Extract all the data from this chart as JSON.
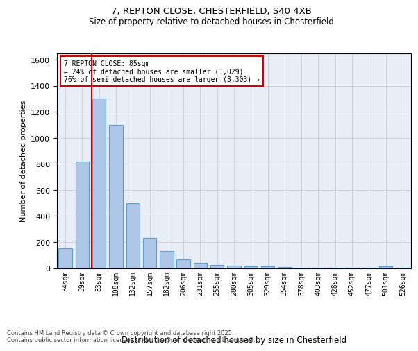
{
  "title1": "7, REPTON CLOSE, CHESTERFIELD, S40 4XB",
  "title2": "Size of property relative to detached houses in Chesterfield",
  "xlabel": "Distribution of detached houses by size in Chesterfield",
  "ylabel": "Number of detached properties",
  "categories": [
    "34sqm",
    "59sqm",
    "83sqm",
    "108sqm",
    "132sqm",
    "157sqm",
    "182sqm",
    "206sqm",
    "231sqm",
    "255sqm",
    "280sqm",
    "305sqm",
    "329sqm",
    "354sqm",
    "378sqm",
    "403sqm",
    "428sqm",
    "452sqm",
    "477sqm",
    "501sqm",
    "526sqm"
  ],
  "values": [
    150,
    820,
    1300,
    1100,
    500,
    230,
    130,
    65,
    38,
    25,
    20,
    15,
    12,
    8,
    6,
    5,
    4,
    3,
    2,
    12,
    2
  ],
  "bar_color": "#aec6e8",
  "bar_edge_color": "#5a9fd4",
  "bar_width": 0.8,
  "red_line_x": 1.55,
  "ylim": [
    0,
    1650
  ],
  "yticks": [
    0,
    200,
    400,
    600,
    800,
    1000,
    1200,
    1400,
    1600
  ],
  "annotation_text": "7 REPTON CLOSE: 85sqm\n← 24% of detached houses are smaller (1,029)\n76% of semi-detached houses are larger (3,303) →",
  "annotation_box_color": "#ffffff",
  "annotation_box_edge": "#cc0000",
  "red_line_color": "#cc0000",
  "grid_color": "#cccccc",
  "bg_color": "#e8eef8",
  "footer1": "Contains HM Land Registry data © Crown copyright and database right 2025.",
  "footer2": "Contains public sector information licensed under the Open Government Licence v3.0."
}
